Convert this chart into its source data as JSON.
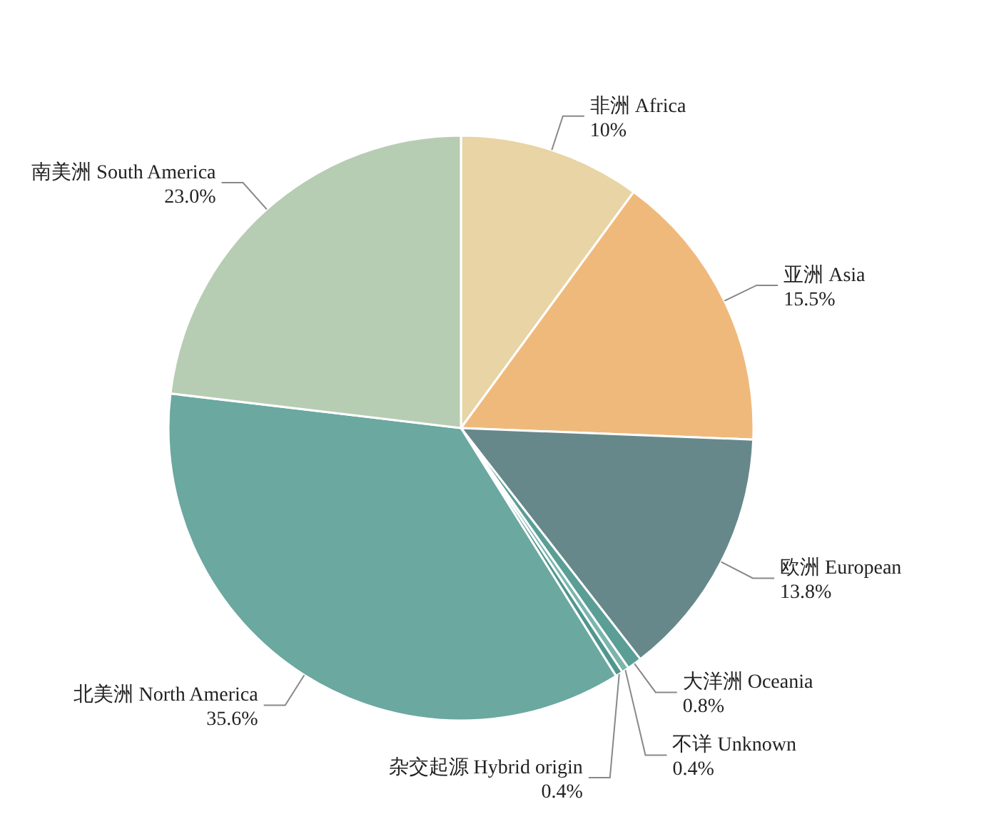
{
  "chart_data": {
    "type": "pie",
    "categories": [
      "非洲 Africa",
      "亚洲 Asia",
      "欧洲 European",
      "大洋洲 Oceania",
      "不详 Unknown",
      "杂交起源 Hybrid origin",
      "北美洲 North America",
      "南美洲 South America"
    ],
    "values": [
      10,
      15.5,
      13.8,
      0.8,
      0.4,
      0.4,
      35.6,
      23.0
    ],
    "value_labels": [
      "10%",
      "15.5%",
      "13.8%",
      "0.8%",
      "0.4%",
      "0.4%",
      "35.6%",
      "23.0%"
    ],
    "colors": [
      "#e8d4a4",
      "#f0b97c",
      "#66888a",
      "#5a9e96",
      "#7ab5ad",
      "#4f968e",
      "#6aa8a0",
      "#b7cdb3"
    ],
    "legend": false
  }
}
